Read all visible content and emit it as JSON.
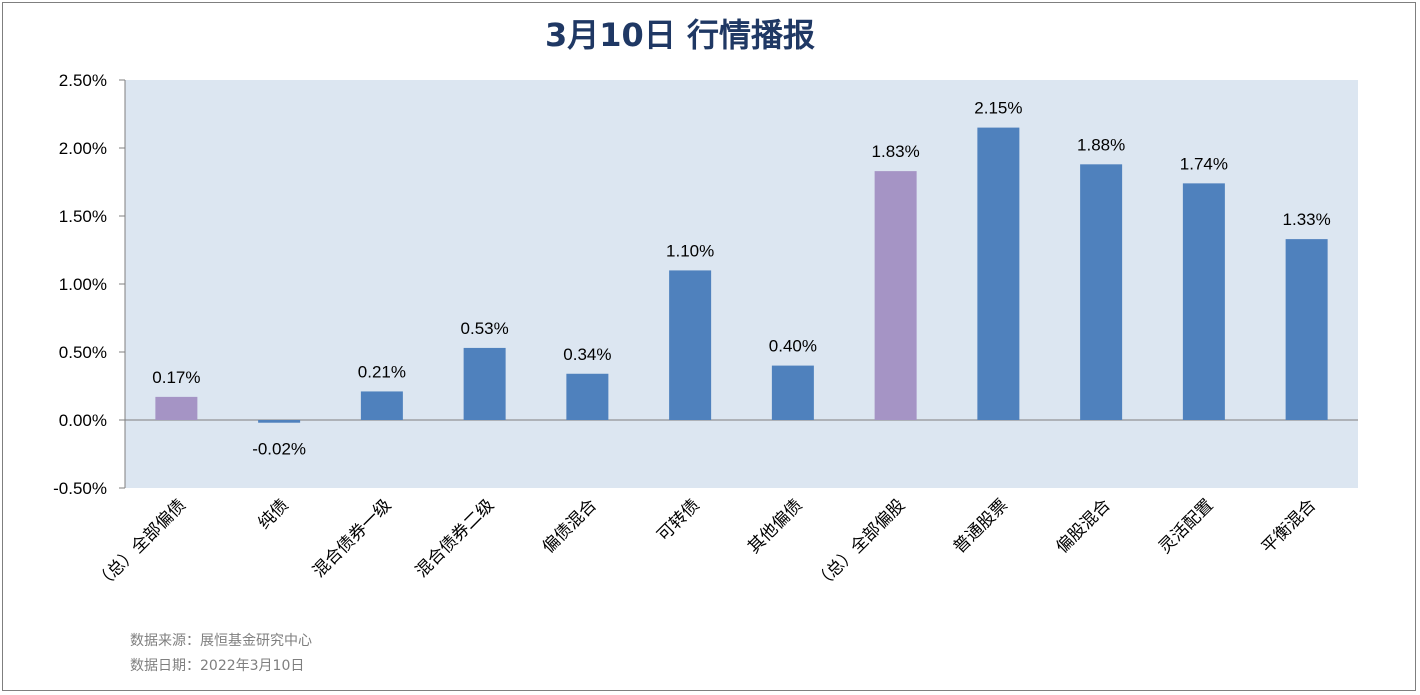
{
  "chart_data": {
    "type": "bar",
    "title": "3月10日  行情播报",
    "categories": [
      "（总）全部偏债",
      "纯债",
      "混合债券一级",
      "混合债券二级",
      "偏债混合",
      "可转债",
      "其他偏债",
      "（总）全部偏股",
      "普通股票",
      "偏股混合",
      "灵活配置",
      "平衡混合"
    ],
    "values": [
      0.17,
      -0.02,
      0.21,
      0.53,
      0.34,
      1.1,
      0.4,
      1.83,
      2.15,
      1.88,
      1.74,
      1.33
    ],
    "value_labels": [
      "0.17%",
      "-0.02%",
      "0.21%",
      "0.53%",
      "0.34%",
      "1.10%",
      "0.40%",
      "1.83%",
      "2.15%",
      "1.88%",
      "1.74%",
      "1.33%"
    ],
    "highlight": [
      true,
      false,
      false,
      false,
      false,
      false,
      false,
      true,
      false,
      false,
      false,
      false
    ],
    "y_ticks": [
      2.5,
      2.0,
      1.5,
      1.0,
      0.5,
      0.0,
      -0.5
    ],
    "y_tick_labels": [
      "2.50%",
      "2.00%",
      "1.50%",
      "1.00%",
      "0.50%",
      "0.00%",
      "-0.50%"
    ],
    "ylim": [
      -0.5,
      2.5
    ],
    "xlabel": "",
    "ylabel": "",
    "grid": false,
    "colors": {
      "bar": "#4f81bd",
      "highlight_bar": "#a594c5",
      "plot_bg": "#dce6f1",
      "axis": "#7f7f7f",
      "title": "#1f3864"
    }
  },
  "notes": {
    "source": "数据来源：展恒基金研究中心",
    "date": "数据日期：2022年3月10日"
  }
}
